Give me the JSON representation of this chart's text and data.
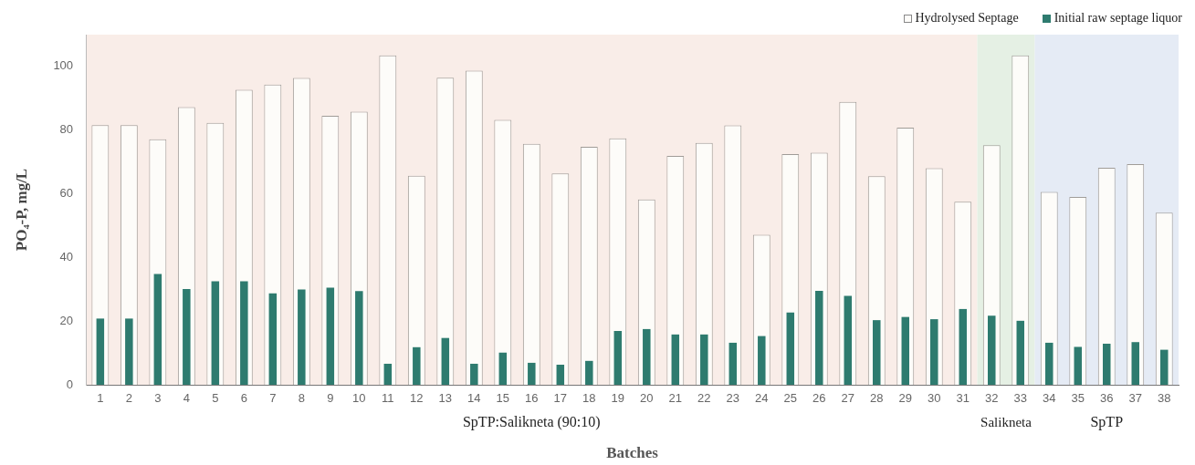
{
  "chart_data": {
    "type": "bar",
    "xlabel": "Batches",
    "ylabel": "PO₄-P, mg/L",
    "x": [
      1,
      2,
      3,
      4,
      5,
      6,
      7,
      8,
      9,
      10,
      11,
      12,
      13,
      14,
      15,
      16,
      17,
      18,
      19,
      20,
      21,
      22,
      23,
      24,
      25,
      26,
      27,
      28,
      29,
      30,
      31,
      32,
      33,
      34,
      35,
      36,
      37,
      38
    ],
    "xlim": [
      0.5,
      38.5
    ],
    "xticks": [
      1,
      2,
      3,
      4,
      5,
      6,
      7,
      8,
      9,
      10,
      11,
      12,
      13,
      14,
      15,
      16,
      17,
      18,
      19,
      20,
      21,
      22,
      23,
      24,
      25,
      26,
      27,
      28,
      29,
      30,
      31,
      32,
      33,
      34,
      35,
      36,
      37,
      38
    ],
    "series": [
      {
        "name": "Hydrolysed Septage",
        "color": "#fdfcf9",
        "values": [
          81.6,
          81.6,
          77.1,
          87.2,
          82.3,
          92.7,
          94.3,
          96.4,
          84.5,
          85.8,
          103.5,
          65.7,
          96.5,
          98.7,
          83.2,
          75.7,
          66.4,
          74.8,
          77.4,
          58.2,
          71.9,
          76.0,
          81.5,
          47.1,
          72.5,
          72.9,
          88.9,
          65.5,
          80.8,
          68.0,
          57.5,
          75.3,
          103.5,
          60.6,
          59.0,
          68.2,
          69.3,
          54.1
        ]
      },
      {
        "name": "Initial raw septage liquor",
        "color": "#2e7b6f",
        "values": [
          20.8,
          20.8,
          34.8,
          30.1,
          32.5,
          32.5,
          28.7,
          29.9,
          30.5,
          29.4,
          6.6,
          11.8,
          14.7,
          6.6,
          10.1,
          6.9,
          6.3,
          7.5,
          16.9,
          17.5,
          15.8,
          15.8,
          13.2,
          15.3,
          22.7,
          29.5,
          27.9,
          20.3,
          21.3,
          20.6,
          23.8,
          21.7,
          20.1,
          13.2,
          11.9,
          12.9,
          13.4,
          11.0
        ]
      }
    ],
    "ylim": [
      0,
      110
    ],
    "yticks": [
      0,
      20,
      40,
      60,
      80,
      100
    ],
    "grid": false,
    "legend": "top right",
    "bands": [
      {
        "axis": "x",
        "from": 0.5,
        "to": 31.5,
        "label": "SpTP:Salikneta (90:10)",
        "color": "#f9ede8"
      },
      {
        "axis": "x",
        "from": 31.5,
        "to": 33.5,
        "label": "Salikneta",
        "color": "#e5f0e4"
      },
      {
        "axis": "x",
        "from": 33.5,
        "to": 38.5,
        "label": "SpTP",
        "color": "#e5ebf5"
      }
    ]
  }
}
